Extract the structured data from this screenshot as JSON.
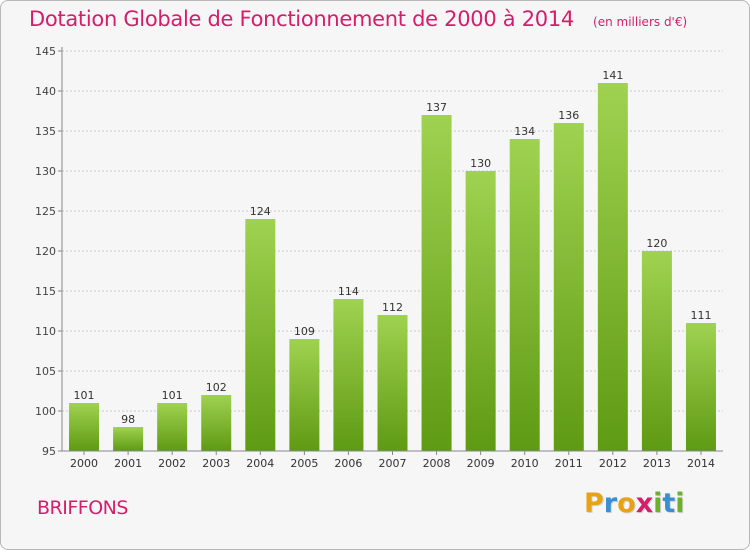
{
  "header": {
    "title": "Dotation Globale de Fonctionnement de 2000 à 2014",
    "units": "(en milliers d'€)"
  },
  "footer": {
    "commune": "BRIFFONS",
    "logo": "Proxiti"
  },
  "colors": {
    "accent": "#d61d6c",
    "bar_top": "#9fd250",
    "bar_bottom": "#5f9a14",
    "grid": "#c8c8c8",
    "axis": "#888888",
    "logo_letters": [
      "#e8a215",
      "#3a8fd0",
      "#e8a215",
      "#d61d6c",
      "#6bb12a",
      "#3a8fd0",
      "#6bb12a"
    ]
  },
  "chart_data": {
    "type": "bar",
    "categories": [
      "2000",
      "2001",
      "2002",
      "2003",
      "2004",
      "2005",
      "2006",
      "2007",
      "2008",
      "2009",
      "2010",
      "2011",
      "2012",
      "2013",
      "2014"
    ],
    "values": [
      101,
      98,
      101,
      102,
      124,
      109,
      114,
      112,
      137,
      130,
      134,
      136,
      141,
      120,
      111
    ],
    "data_labels": [
      "101",
      "98",
      "101",
      "102",
      "124",
      "109",
      "114",
      "112",
      "137",
      "130",
      "134",
      "136",
      "141",
      "120",
      "111"
    ],
    "yticks": [
      95,
      100,
      105,
      110,
      115,
      120,
      125,
      130,
      135,
      140,
      145
    ],
    "ytick_labels": [
      "95",
      "100",
      "105",
      "110",
      "115",
      "120",
      "125",
      "130",
      "135",
      "140",
      "145"
    ],
    "ylim": [
      95,
      145
    ],
    "grid": true,
    "legend": false,
    "title": "Dotation Globale de Fonctionnement de 2000 à 2014",
    "xlabel": "",
    "ylabel": ""
  }
}
